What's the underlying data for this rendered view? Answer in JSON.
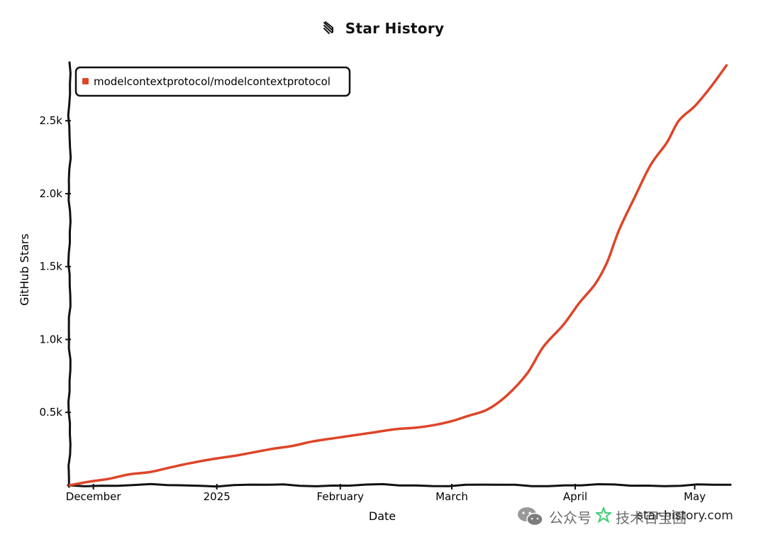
{
  "chart_data": {
    "type": "line",
    "title": "Star History",
    "xlabel": "Date",
    "ylabel": "GitHub Stars",
    "ylim": [
      0,
      2900
    ],
    "yticks": [
      {
        "value": 500,
        "label": "0.5k"
      },
      {
        "value": 1000,
        "label": "1.0k"
      },
      {
        "value": 1500,
        "label": "1.5k"
      },
      {
        "value": 2000,
        "label": "2.0k"
      },
      {
        "value": 2500,
        "label": "2.5k"
      }
    ],
    "xlim": [
      "2024-11-25",
      "2025-05-10"
    ],
    "xticks": [
      {
        "date": "2024-12-01",
        "label": "December"
      },
      {
        "date": "2025-01-01",
        "label": "2025"
      },
      {
        "date": "2025-02-01",
        "label": "February"
      },
      {
        "date": "2025-03-01",
        "label": "March"
      },
      {
        "date": "2025-04-01",
        "label": "April"
      },
      {
        "date": "2025-05-01",
        "label": "May"
      }
    ],
    "legend_position": "top-left",
    "series": [
      {
        "name": "modelcontextprotocol/modelcontextprotocol",
        "color": "#dd4528",
        "points": [
          [
            "2024-11-25",
            0
          ],
          [
            "2024-11-30",
            25
          ],
          [
            "2024-12-05",
            45
          ],
          [
            "2024-12-10",
            75
          ],
          [
            "2024-12-15",
            90
          ],
          [
            "2024-12-20",
            120
          ],
          [
            "2024-12-25",
            150
          ],
          [
            "2024-12-31",
            180
          ],
          [
            "2025-01-05",
            200
          ],
          [
            "2025-01-10",
            225
          ],
          [
            "2025-01-15",
            250
          ],
          [
            "2025-01-20",
            270
          ],
          [
            "2025-01-25",
            300
          ],
          [
            "2025-01-31",
            325
          ],
          [
            "2025-02-05",
            345
          ],
          [
            "2025-02-10",
            365
          ],
          [
            "2025-02-15",
            385
          ],
          [
            "2025-02-20",
            395
          ],
          [
            "2025-02-25",
            415
          ],
          [
            "2025-03-01",
            440
          ],
          [
            "2025-03-05",
            475
          ],
          [
            "2025-03-10",
            520
          ],
          [
            "2025-03-15",
            620
          ],
          [
            "2025-03-20",
            770
          ],
          [
            "2025-03-24",
            950
          ],
          [
            "2025-03-29",
            1100
          ],
          [
            "2025-04-02",
            1250
          ],
          [
            "2025-04-06",
            1380
          ],
          [
            "2025-04-09",
            1530
          ],
          [
            "2025-04-12",
            1750
          ],
          [
            "2025-04-16",
            1980
          ],
          [
            "2025-04-20",
            2200
          ],
          [
            "2025-04-24",
            2350
          ],
          [
            "2025-04-27",
            2500
          ],
          [
            "2025-05-01",
            2600
          ],
          [
            "2025-05-05",
            2730
          ],
          [
            "2025-05-09",
            2880
          ]
        ]
      }
    ]
  },
  "watermark": {
    "platform": "公众号",
    "account": "技术百宝囿",
    "site": "star-history.com"
  },
  "colors": {
    "series": "#dd4528",
    "axis": "#111111",
    "star_logo": "#22c55e"
  }
}
